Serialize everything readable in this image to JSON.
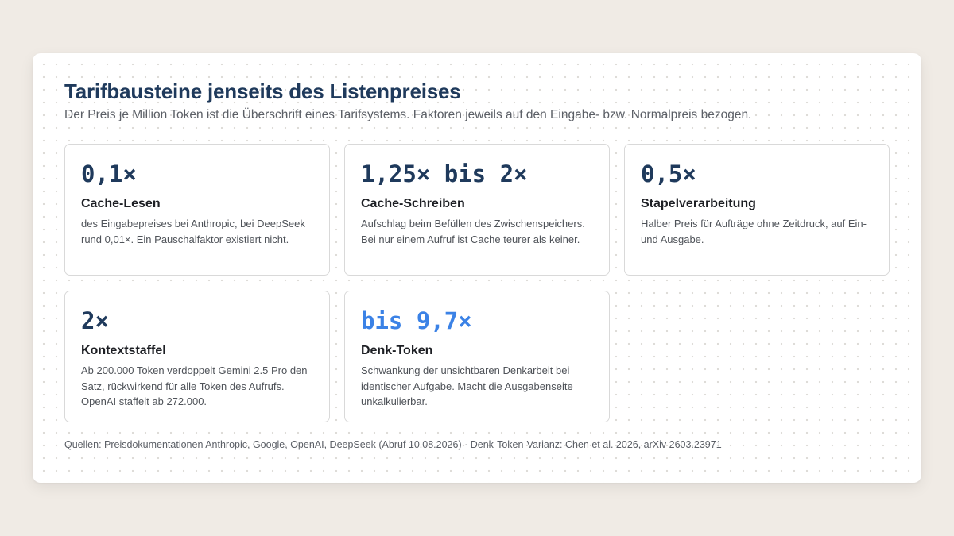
{
  "header": {
    "title": "Tarifbausteine jenseits des Listenpreises",
    "subtitle": "Der Preis je Million Token ist die Überschrift eines Tarifsystems. Faktoren jeweils auf den Eingabe- bzw. Normalpreis bezogen."
  },
  "colors": {
    "background": "#f0ebe5",
    "panel": "#ffffff",
    "title": "#1f3a5c",
    "factor": "#1f3a5c",
    "accent_factor": "#3b82e6",
    "text": "#4f5359",
    "card_border": "#d9d9d9"
  },
  "cards": [
    {
      "factor": "0,1×",
      "name": "Cache-Lesen",
      "description": "des Eingabepreises bei Anthropic, bei DeepSeek rund 0,01×. Ein Pauschalfaktor existiert nicht."
    },
    {
      "factor": "1,25× bis 2×",
      "name": "Cache-Schreiben",
      "description": "Aufschlag beim Befüllen des Zwischenspeichers. Bei nur einem Aufruf ist Cache teurer als keiner."
    },
    {
      "factor": "0,5×",
      "name": "Stapelverarbeitung",
      "description": "Halber Preis für Aufträge ohne Zeitdruck, auf Ein- und Ausgabe."
    },
    {
      "factor": "2×",
      "name": "Kontextstaffel",
      "description": "Ab 200.000 Token verdoppelt Gemini 2.5 Pro den Satz, rückwirkend für alle Token des Aufrufs. OpenAI staffelt ab 272.000."
    },
    {
      "factor": "bis 9,7×",
      "name": "Denk-Token",
      "description": "Schwankung der unsichtbaren Denkarbeit bei identischer Aufgabe. Macht die Ausgabenseite unkalkulierbar.",
      "highlight": true
    }
  ],
  "footer": {
    "sources": "Quellen: Preisdokumentationen Anthropic, Google, OpenAI, DeepSeek (Abruf 10.08.2026) · Denk-Token-Varianz: Chen et al. 2026, arXiv 2603.23971"
  }
}
